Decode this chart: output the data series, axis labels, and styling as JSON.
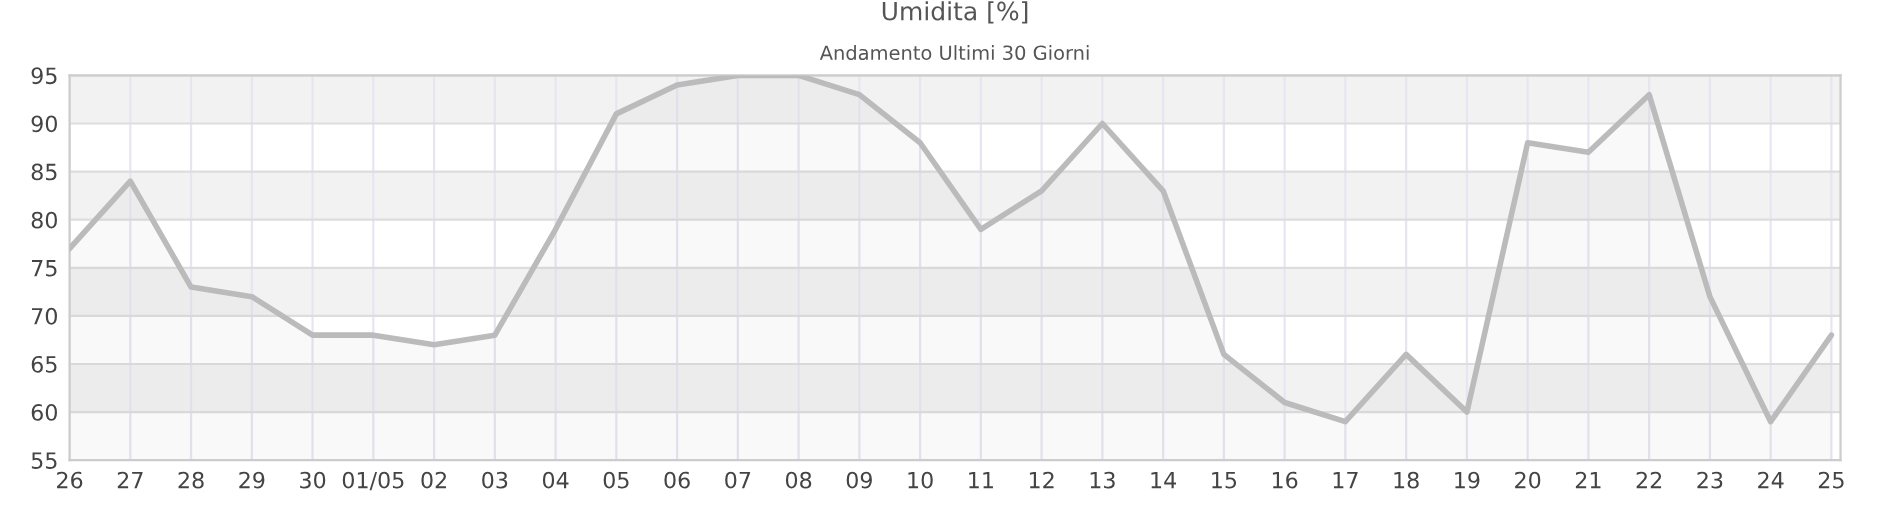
{
  "chart_data": {
    "type": "area",
    "title": "Umidita [%]",
    "subtitle": "Andamento Ultimi 30 Giorni",
    "categories": [
      "26",
      "27",
      "28",
      "29",
      "30",
      "01/05",
      "02",
      "03",
      "04",
      "05",
      "06",
      "07",
      "08",
      "09",
      "10",
      "11",
      "12",
      "13",
      "14",
      "15",
      "16",
      "17",
      "18",
      "19",
      "20",
      "21",
      "22",
      "23",
      "24",
      "25"
    ],
    "series": [
      {
        "color": "#bbbbbb",
        "values": [
          77,
          84,
          73,
          72,
          68,
          68,
          67,
          68,
          79,
          91,
          94,
          95,
          95,
          93,
          88,
          79,
          83,
          90,
          83,
          66,
          61,
          59,
          66,
          60,
          88,
          87,
          93,
          72,
          59,
          68
        ]
      }
    ],
    "ylim": [
      55,
      95
    ],
    "yticks": [
      55,
      60,
      65,
      70,
      75,
      80,
      85,
      90,
      95
    ],
    "grid": true,
    "bands": [
      {
        "axis": "y",
        "from": 60,
        "to": 65,
        "color": "#f2f2f2"
      },
      {
        "axis": "y",
        "from": 70,
        "to": 75,
        "color": "#f2f2f2"
      },
      {
        "axis": "y",
        "from": 80,
        "to": 85,
        "color": "#f2f2f2"
      },
      {
        "axis": "y",
        "from": 90,
        "to": 95,
        "color": "#f2f2f2"
      }
    ],
    "legend": false
  }
}
